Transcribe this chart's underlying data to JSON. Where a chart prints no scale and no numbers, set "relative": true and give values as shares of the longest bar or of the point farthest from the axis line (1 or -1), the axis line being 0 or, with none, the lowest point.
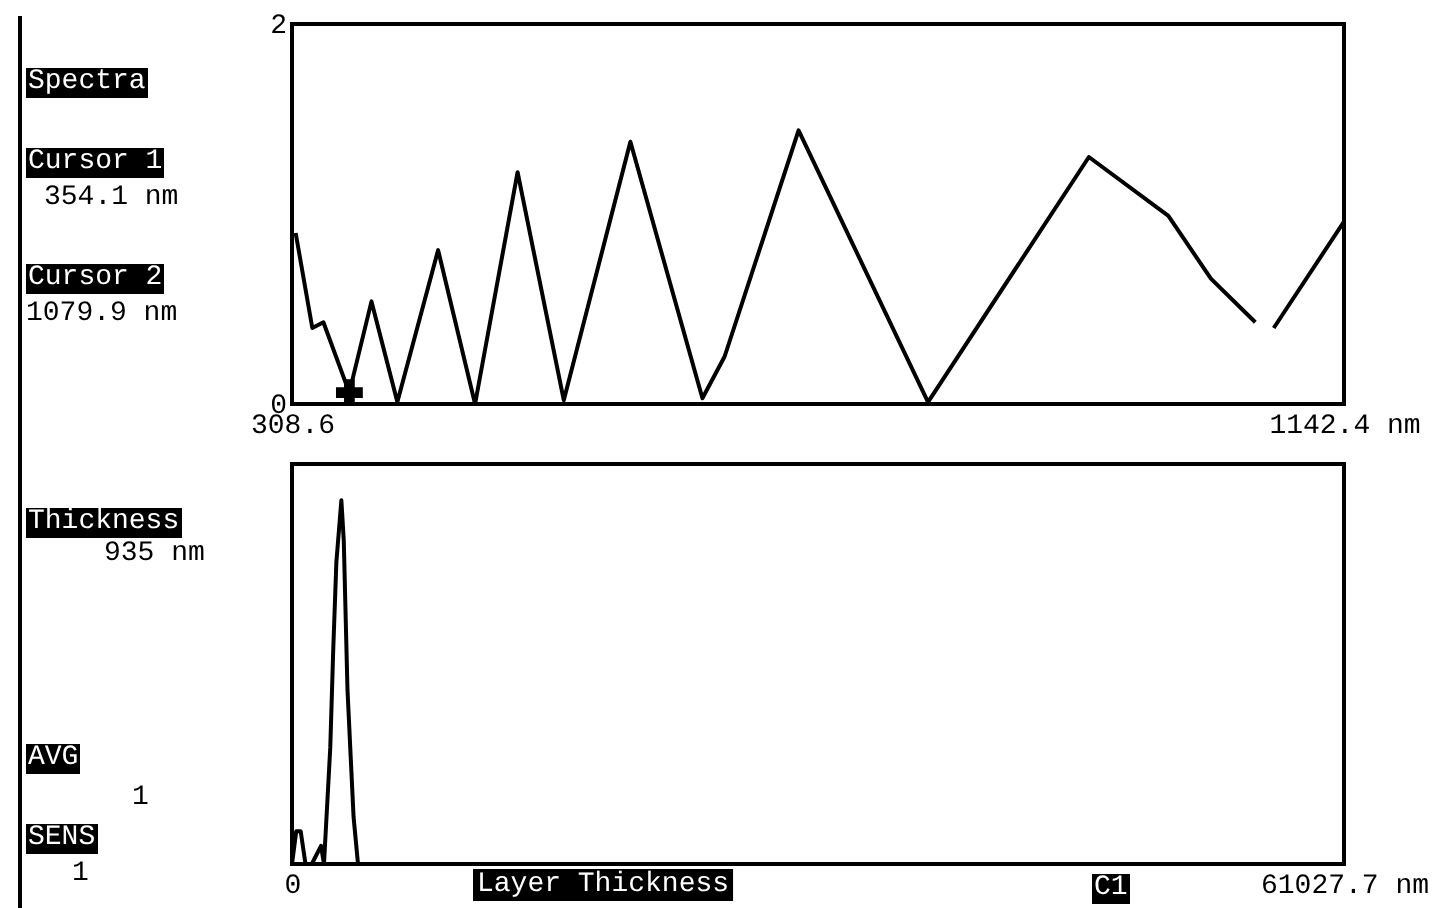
{
  "chart_data": [
    {
      "type": "line",
      "x": [
        311.5,
        324.7,
        333.5,
        354.0,
        371.6,
        392.1,
        424.4,
        453.7,
        487.4,
        524.0,
        576.8,
        633.9,
        651.5,
        710.1,
        812.7,
        940.2,
        1003.2,
        1036.9,
        1072.1,
        1079.9,
        1086.7,
        1142.4
      ],
      "xlim": [
        308.6,
        1142.4
      ],
      "xticks": [
        308.6,
        {
          "value": 1142.4,
          "label": "1142.4 nm"
        }
      ],
      "ylim": [
        0,
        2
      ],
      "yticks": [
        0,
        2
      ],
      "series": [
        {
          "color": "#000000",
          "values": [
            0.9,
            0.4,
            0.43,
            0.06,
            0.54,
            0.01,
            0.81,
            0.0,
            1.22,
            0.02,
            1.38,
            0.03,
            0.25,
            1.44,
            0.01,
            1.3,
            0.99,
            0.66,
            0.43,
            null,
            0.4,
            0.96
          ]
        },
        {
          "type": "scatter",
          "marker": "cross",
          "color": "#000000",
          "x": [
            354.1
          ],
          "values": [
            0.06
          ]
        }
      ],
      "annotations": [
        "Spectra",
        "Cursor 1",
        "354.1 nm",
        "Cursor 2",
        "1079.9 nm"
      ]
    },
    {
      "type": "line",
      "relative": true,
      "x": [
        0,
        247,
        504,
        783,
        1148,
        1684,
        1855,
        2220,
        2392,
        2574,
        2864,
        3003,
        3218,
        3571,
        3829,
        61027.7
      ],
      "xlim": [
        0,
        61027.7
      ],
      "xticks": [
        0,
        {
          "value": 61027.7,
          "label": "61027.7 nm"
        }
      ],
      "xlabel": "Layer Thickness",
      "series": [
        {
          "color": "#000000",
          "values": [
            0,
            0.09,
            0.09,
            0,
            0,
            0.05,
            0,
            0.32,
            0.59,
            0.83,
            1.0,
            0.89,
            0.48,
            0.13,
            0,
            0
          ]
        }
      ],
      "annotations": [
        "Thickness",
        "935 nm",
        "AVG",
        "1",
        "SENS",
        "1",
        "C1"
      ]
    }
  ]
}
